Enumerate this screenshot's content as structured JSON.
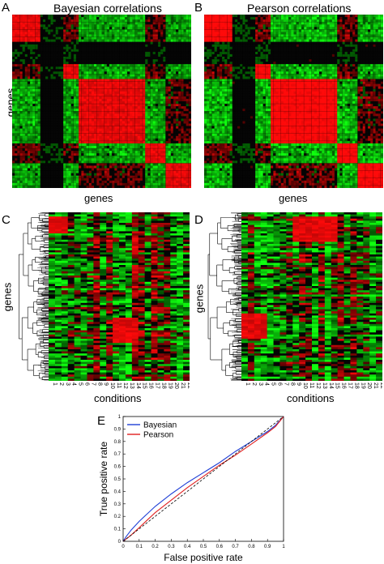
{
  "panels": {
    "A": {
      "letter": "A",
      "title": "Bayesian correlations",
      "ylabel": "genes"
    },
    "B": {
      "letter": "B",
      "title": "Pearson correlations"
    },
    "shared_xlabel": "genes",
    "C": {
      "letter": "C",
      "ylabel": "genes",
      "xlabel": "conditions"
    },
    "D": {
      "letter": "D",
      "ylabel": "genes",
      "xlabel": "conditions"
    },
    "E": {
      "letter": "E"
    }
  },
  "colors": {
    "red": "#e01010",
    "green": "#22cc22",
    "black": "#000000",
    "bayesian": "#1f3fd6",
    "pearson": "#e02020"
  },
  "chart_data": [
    {
      "type": "heatmap",
      "title": "Bayesian correlations",
      "xlabel": "genes",
      "ylabel": "genes",
      "colors": [
        "green",
        "black",
        "red"
      ]
    },
    {
      "type": "heatmap",
      "title": "Pearson correlations",
      "xlabel": "genes",
      "ylabel": "",
      "colors": [
        "green",
        "black",
        "red"
      ]
    },
    {
      "type": "heatmap",
      "xlabel": "conditions",
      "ylabel": "genes",
      "categories": [
        "1",
        "2",
        "3",
        "4",
        "5",
        "6",
        "7",
        "8",
        "9",
        "10",
        "11",
        "12",
        "13",
        "14",
        "15",
        "16",
        "17",
        "18",
        "19",
        "20",
        "21",
        "22"
      ],
      "colors": [
        "green",
        "black",
        "red"
      ]
    },
    {
      "type": "heatmap",
      "xlabel": "conditions",
      "ylabel": "genes",
      "categories": [
        "1",
        "2",
        "3",
        "4",
        "5",
        "6",
        "7",
        "8",
        "9",
        "10",
        "11",
        "12",
        "13",
        "14",
        "15",
        "16",
        "17",
        "18",
        "19",
        "20",
        "21",
        "22"
      ],
      "colors": [
        "green",
        "black",
        "red"
      ]
    },
    {
      "type": "line",
      "xlabel": "False positive rate",
      "ylabel": "True positive rate",
      "xlim": [
        0,
        1
      ],
      "ylim": [
        0,
        1
      ],
      "xticks": [
        "0",
        "0.1",
        "0.2",
        "0.3",
        "0.4",
        "0.5",
        "0.6",
        "0.7",
        "0.8",
        "0.9",
        "1"
      ],
      "yticks": [
        "0",
        "0.1",
        "0.2",
        "0.3",
        "0.4",
        "0.5",
        "0.6",
        "0.7",
        "0.8",
        "0.9",
        "1"
      ],
      "legend": "top-left",
      "series": [
        {
          "name": "Bayesian",
          "color": "#1f3fd6",
          "x": [
            0,
            0.02,
            0.05,
            0.1,
            0.15,
            0.2,
            0.3,
            0.4,
            0.5,
            0.6,
            0.7,
            0.8,
            0.9,
            0.95,
            1.0
          ],
          "y": [
            0,
            0.04,
            0.09,
            0.16,
            0.22,
            0.28,
            0.38,
            0.47,
            0.55,
            0.63,
            0.72,
            0.8,
            0.88,
            0.93,
            1.0
          ]
        },
        {
          "name": "Pearson",
          "color": "#e02020",
          "x": [
            0,
            0.02,
            0.05,
            0.1,
            0.15,
            0.2,
            0.3,
            0.4,
            0.5,
            0.6,
            0.7,
            0.8,
            0.9,
            0.95,
            1.0
          ],
          "y": [
            0,
            0.02,
            0.05,
            0.11,
            0.17,
            0.23,
            0.33,
            0.43,
            0.52,
            0.61,
            0.69,
            0.78,
            0.87,
            0.92,
            1.0
          ]
        },
        {
          "name": "",
          "style": "dashed",
          "color": "#000000",
          "x": [
            0,
            1
          ],
          "y": [
            0,
            1
          ]
        }
      ]
    }
  ]
}
